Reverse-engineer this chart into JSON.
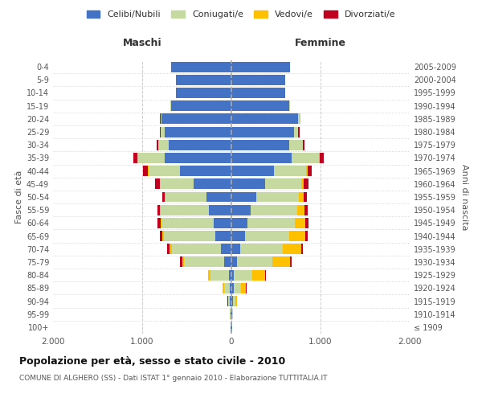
{
  "age_groups": [
    "100+",
    "95-99",
    "90-94",
    "85-89",
    "80-84",
    "75-79",
    "70-74",
    "65-69",
    "60-64",
    "55-59",
    "50-54",
    "45-49",
    "40-44",
    "35-39",
    "30-34",
    "25-29",
    "20-24",
    "15-19",
    "10-14",
    "5-9",
    "0-4"
  ],
  "birth_years": [
    "≤ 1909",
    "1910-1914",
    "1915-1919",
    "1920-1924",
    "1925-1929",
    "1930-1934",
    "1935-1939",
    "1940-1944",
    "1945-1949",
    "1950-1954",
    "1955-1959",
    "1960-1964",
    "1965-1969",
    "1970-1974",
    "1975-1979",
    "1980-1984",
    "1985-1989",
    "1990-1994",
    "1995-1999",
    "2000-2004",
    "2005-2009"
  ],
  "males": {
    "celibi": [
      5,
      10,
      15,
      20,
      30,
      80,
      120,
      180,
      200,
      250,
      280,
      420,
      580,
      750,
      700,
      750,
      780,
      680,
      620,
      620,
      680
    ],
    "coniugati": [
      2,
      5,
      20,
      60,
      200,
      450,
      550,
      580,
      580,
      540,
      460,
      380,
      350,
      300,
      120,
      40,
      15,
      5,
      3,
      0,
      0
    ],
    "vedovi": [
      0,
      2,
      5,
      15,
      30,
      20,
      20,
      15,
      10,
      8,
      6,
      4,
      4,
      4,
      3,
      2,
      1,
      0,
      0,
      0,
      0
    ],
    "divorziati": [
      0,
      0,
      2,
      2,
      4,
      30,
      30,
      30,
      35,
      35,
      30,
      55,
      55,
      45,
      12,
      10,
      4,
      2,
      0,
      0,
      0
    ]
  },
  "females": {
    "nubili": [
      5,
      10,
      15,
      25,
      30,
      60,
      100,
      150,
      180,
      220,
      280,
      380,
      480,
      680,
      650,
      700,
      750,
      650,
      600,
      600,
      660
    ],
    "coniugate": [
      2,
      5,
      30,
      80,
      200,
      400,
      480,
      500,
      530,
      520,
      480,
      400,
      360,
      300,
      150,
      50,
      20,
      8,
      4,
      0,
      0
    ],
    "vedove": [
      2,
      5,
      20,
      60,
      150,
      200,
      200,
      180,
      120,
      80,
      50,
      30,
      15,
      10,
      5,
      2,
      2,
      0,
      0,
      0,
      0
    ],
    "divorziate": [
      0,
      0,
      2,
      2,
      3,
      20,
      25,
      25,
      35,
      40,
      35,
      55,
      50,
      45,
      15,
      10,
      5,
      2,
      0,
      0,
      0
    ]
  },
  "colors": {
    "celibi_nubili": "#4472c4",
    "coniugati": "#c5d9a0",
    "vedovi": "#ffc000",
    "divorziati": "#c0001f"
  },
  "xlim": 2000,
  "xticks": [
    -2000,
    -1000,
    0,
    1000,
    2000
  ],
  "xticklabels": [
    "2.000",
    "1.000",
    "0",
    "1.000",
    "2.000"
  ],
  "title": "Popolazione per età, sesso e stato civile - 2010",
  "subtitle": "COMUNE DI ALGHERO (SS) - Dati ISTAT 1° gennaio 2010 - Elaborazione TUTTITALIA.IT",
  "ylabel_left": "Fasce di età",
  "ylabel_right": "Anni di nascita",
  "label_maschi": "Maschi",
  "label_femmine": "Femmine",
  "legend_labels": [
    "Celibi/Nubili",
    "Coniugati/e",
    "Vedovi/e",
    "Divorziati/e"
  ]
}
